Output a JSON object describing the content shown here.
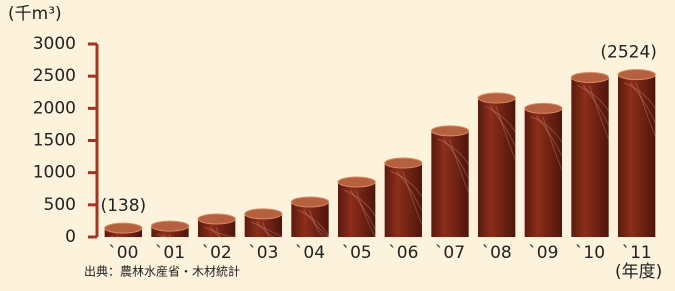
{
  "chart_data": {
    "type": "bar",
    "y_unit": "(千m³)",
    "x_label": "(年度)",
    "source": "出典：農林水産省・木材統計",
    "categories": [
      "`00",
      "`01",
      "`02",
      "`03",
      "`04",
      "`05",
      "`06",
      "`07",
      "`08",
      "`09",
      "`10",
      "`11"
    ],
    "values": [
      138,
      170,
      280,
      360,
      545,
      855,
      1150,
      1650,
      2160,
      2000,
      2480,
      2524
    ],
    "value_labels": [
      "(138)",
      null,
      null,
      null,
      null,
      null,
      null,
      null,
      null,
      null,
      null,
      "(2524)"
    ],
    "color": "#7a2515",
    "axis_color": "#a0341f",
    "ylim": [
      0,
      3000
    ],
    "yticks": [
      0,
      500,
      1000,
      1500,
      2000,
      2500,
      3000
    ]
  }
}
